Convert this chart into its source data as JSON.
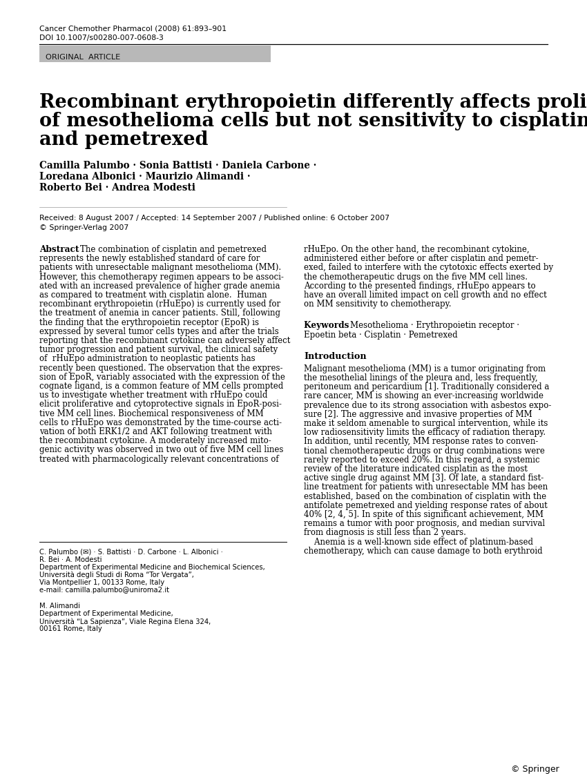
{
  "journal_line1": "Cancer Chemother Pharmacol (2008) 61:893–901",
  "journal_line2": "DOI 10.1007/s00280-007-0608-3",
  "section_label": "ORIGINAL  ARTICLE",
  "section_bg": "#b8b8b8",
  "title_lines": [
    "Recombinant erythropoietin differently affects proliferation",
    "of mesothelioma cells but not sensitivity to cisplatin",
    "and pemetrexed"
  ],
  "authors_lines": [
    "Camilla Palumbo · Sonia Battisti · Daniela Carbone ·",
    "Loredana Albonici · Maurizio Alimandi ·",
    "Roberto Bei · Andrea Modesti"
  ],
  "received": "Received: 8 August 2007 / Accepted: 14 September 2007 / Published online: 6 October 2007",
  "copyright": "© Springer-Verlag 2007",
  "abstract_label": "Abstract",
  "abstract_left_lines": [
    "The combination of cisplatin and pemetrexed",
    "represents the newly established standard of care for",
    "patients with unresectable malignant mesothelioma (MM).",
    "However, this chemotherapy regimen appears to be associ-",
    "ated with an increased prevalence of higher grade anemia",
    "as compared to treatment with cisplatin alone.  Human",
    "recombinant erythropoietin (rHuEpo) is currently used for",
    "the treatment of anemia in cancer patients. Still, following",
    "the finding that the erythropoietin receptor (EpoR) is",
    "expressed by several tumor cells types and after the trials",
    "reporting that the recombinant cytokine can adversely affect",
    "tumor progression and patient survival, the clinical safety",
    "of  rHuEpo administration to neoplastic patients has",
    "recently been questioned. The observation that the expres-",
    "sion of EpoR, variably associated with the expression of the",
    "cognate ligand, is a common feature of MM cells prompted",
    "us to investigate whether treatment with rHuEpo could",
    "elicit proliferative and cytoprotective signals in EpoR-posi-",
    "tive MM cell lines. Biochemical responsiveness of MM",
    "cells to rHuEpo was demonstrated by the time-course acti-",
    "vation of both ERK1/2 and AKT following treatment with",
    "the recombinant cytokine. A moderately increased mito-",
    "genic activity was observed in two out of five MM cell lines",
    "treated with pharmacologically relevant concentrations of"
  ],
  "abstract_right_lines": [
    "rHuEpo. On the other hand, the recombinant cytokine,",
    "administered either before or after cisplatin and pemetr-",
    "exed, failed to interfere with the cytotoxic effects exerted by",
    "the chemotherapeutic drugs on the five MM cell lines.",
    "According to the presented findings, rHuEpo appears to",
    "have an overall limited impact on cell growth and no effect",
    "on MM sensitivity to chemotherapy."
  ],
  "keywords_label": "Keywords",
  "keywords_lines": [
    "Mesothelioma · Erythropoietin receptor ·",
    "Epoetin beta · Cisplatin · Pemetrexed"
  ],
  "intro_header": "Introduction",
  "intro_lines": [
    "Malignant mesothelioma (MM) is a tumor originating from",
    "the mesothelial linings of the pleura and, less frequently,",
    "peritoneum and pericardium [1]. Traditionally considered a",
    "rare cancer, MM is showing an ever-increasing worldwide",
    "prevalence due to its strong association with asbestos expo-",
    "sure [2]. The aggressive and invasive properties of MM",
    "make it seldom amenable to surgical intervention, while its",
    "low radiosensitivity limits the efficacy of radiation therapy.",
    "In addition, until recently, MM response rates to conven-",
    "tional chemotherapeutic drugs or drug combinations were",
    "rarely reported to exceed 20%. In this regard, a systemic",
    "review of the literature indicated cisplatin as the most",
    "active single drug against MM [3]. Of late, a standard fist-",
    "line treatment for patients with unresectable MM has been",
    "established, based on the combination of cisplatin with the",
    "antifolate pemetrexed and yielding response rates of about",
    "40% [2, 4, 5]. In spite of this significant achievement, MM",
    "remains a tumor with poor prognosis, and median survival",
    "from diagnosis is still less than 2 years.",
    "    Anemia is a well-known side effect of platinum-based",
    "chemotherapy, which can cause damage to both erythroid"
  ],
  "footnote1_lines": [
    "C. Palumbo (✉) · S. Battisti · D. Carbone · L. Albonici ·",
    "R. Bei · A. Modesti",
    "Department of Experimental Medicine and Biochemical Sciences,",
    "Università degli Studi di Roma “Tor Vergata”,",
    "Via Montpellier 1, 00133 Rome, Italy",
    "e-mail: camilla.palumbo@uniroma2.it"
  ],
  "footnote2_lines": [
    "M. Alimandi",
    "Department of Experimental Medicine,",
    "Università “La Sapienza”, Viale Regina Elena 324,",
    "00161 Rome, Italy"
  ],
  "springer_text": "© Springer",
  "bg_color": "#ffffff",
  "text_color": "#000000",
  "gray_text": "#333333"
}
